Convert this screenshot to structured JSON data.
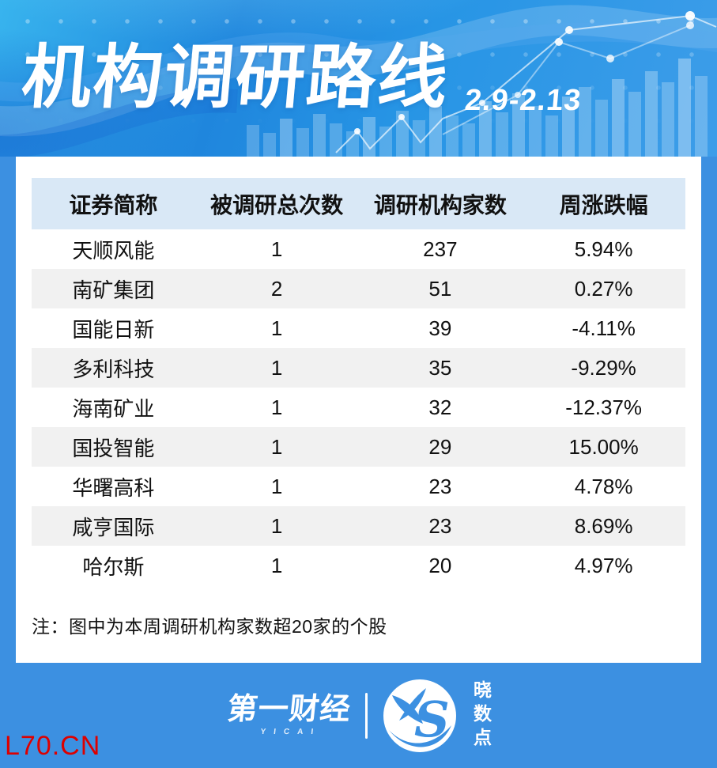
{
  "page": {
    "watermark": "L70.CN"
  },
  "header": {
    "title": "机构调研路线",
    "date_range": "2.9-2.13"
  },
  "table": {
    "columns": [
      "证券简称",
      "被调研总次数",
      "调研机构家数",
      "周涨跌幅"
    ],
    "rows": [
      {
        "name": "天顺风能",
        "times": "1",
        "institutions": "237",
        "change": "5.94%",
        "change_color": "red"
      },
      {
        "name": "南矿集团",
        "times": "2",
        "institutions": "51",
        "change": "0.27%",
        "change_color": "red"
      },
      {
        "name": "国能日新",
        "times": "1",
        "institutions": "39",
        "change": "-4.11%",
        "change_color": "green"
      },
      {
        "name": "多利科技",
        "times": "1",
        "institutions": "35",
        "change": "-9.29%",
        "change_color": "green"
      },
      {
        "name": "海南矿业",
        "times": "1",
        "institutions": "32",
        "change": "-12.37%",
        "change_color": "green"
      },
      {
        "name": "国投智能",
        "times": "1",
        "institutions": "29",
        "change": "15.00%",
        "change_color": "red"
      },
      {
        "name": "华曙高科",
        "times": "1",
        "institutions": "23",
        "change": "4.78%",
        "change_color": "red"
      },
      {
        "name": "咸亨国际",
        "times": "1",
        "institutions": "23",
        "change": "8.69%",
        "change_color": "red"
      },
      {
        "name": "哈尔斯",
        "times": "1",
        "institutions": "20",
        "change": "4.97%",
        "change_color": "red"
      }
    ],
    "note": "注：图中为本周调研机构家数超20家的个股"
  },
  "footer": {
    "brand_primary": "第一财经",
    "brand_primary_sub": "YICAI",
    "brand_secondary": "晓数点"
  },
  "colors": {
    "page_background": "#3c90e1",
    "table_header_background": "#d9e8f6",
    "row_alt_background": "#f1f1f1",
    "institution_count_blue": "#3f8fd8",
    "change_up_red": "#e60012",
    "change_down_green": "#00a650",
    "watermark_red": "#dd0000"
  }
}
